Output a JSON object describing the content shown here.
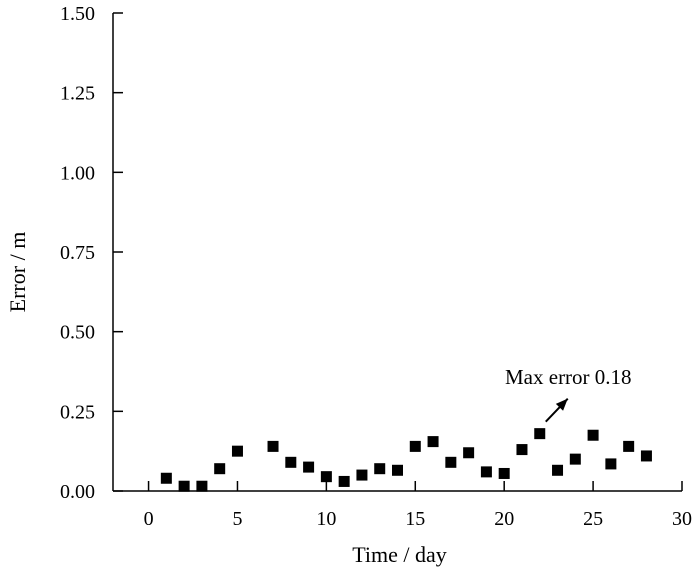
{
  "chart_data": {
    "type": "scatter",
    "xlabel": "Time / day",
    "ylabel": "Error / m",
    "xlim": [
      -2,
      30
    ],
    "ylim": [
      0,
      1.5
    ],
    "x_ticks": [
      0,
      5,
      10,
      15,
      20,
      25,
      30
    ],
    "x_tick_labels": [
      "0",
      "5",
      "10",
      "15",
      "20",
      "25",
      "30"
    ],
    "y_ticks": [
      0,
      0.25,
      0.5,
      0.75,
      1.0,
      1.25,
      1.5
    ],
    "y_tick_labels": [
      "0.00",
      "0.25",
      "0.50",
      "0.75",
      "1.00",
      "1.25",
      "1.50"
    ],
    "grid": false,
    "marker": "square",
    "marker_color": "#000000",
    "points": [
      {
        "x": 1,
        "y": 0.04
      },
      {
        "x": 2,
        "y": 0.015
      },
      {
        "x": 3,
        "y": 0.015
      },
      {
        "x": 4,
        "y": 0.07
      },
      {
        "x": 5,
        "y": 0.125
      },
      {
        "x": 7,
        "y": 0.14
      },
      {
        "x": 8,
        "y": 0.09
      },
      {
        "x": 9,
        "y": 0.075
      },
      {
        "x": 10,
        "y": 0.045
      },
      {
        "x": 11,
        "y": 0.03
      },
      {
        "x": 12,
        "y": 0.05
      },
      {
        "x": 13,
        "y": 0.07
      },
      {
        "x": 14,
        "y": 0.065
      },
      {
        "x": 15,
        "y": 0.14
      },
      {
        "x": 16,
        "y": 0.155
      },
      {
        "x": 17,
        "y": 0.09
      },
      {
        "x": 18,
        "y": 0.12
      },
      {
        "x": 19,
        "y": 0.06
      },
      {
        "x": 20,
        "y": 0.055
      },
      {
        "x": 21,
        "y": 0.13
      },
      {
        "x": 22,
        "y": 0.18
      },
      {
        "x": 23,
        "y": 0.065
      },
      {
        "x": 24,
        "y": 0.1
      },
      {
        "x": 25,
        "y": 0.175
      },
      {
        "x": 26,
        "y": 0.085
      },
      {
        "x": 27,
        "y": 0.14
      },
      {
        "x": 28,
        "y": 0.11
      }
    ],
    "annotation": {
      "text": "Max error 0.18",
      "target": {
        "x": 22,
        "y": 0.18
      }
    }
  }
}
